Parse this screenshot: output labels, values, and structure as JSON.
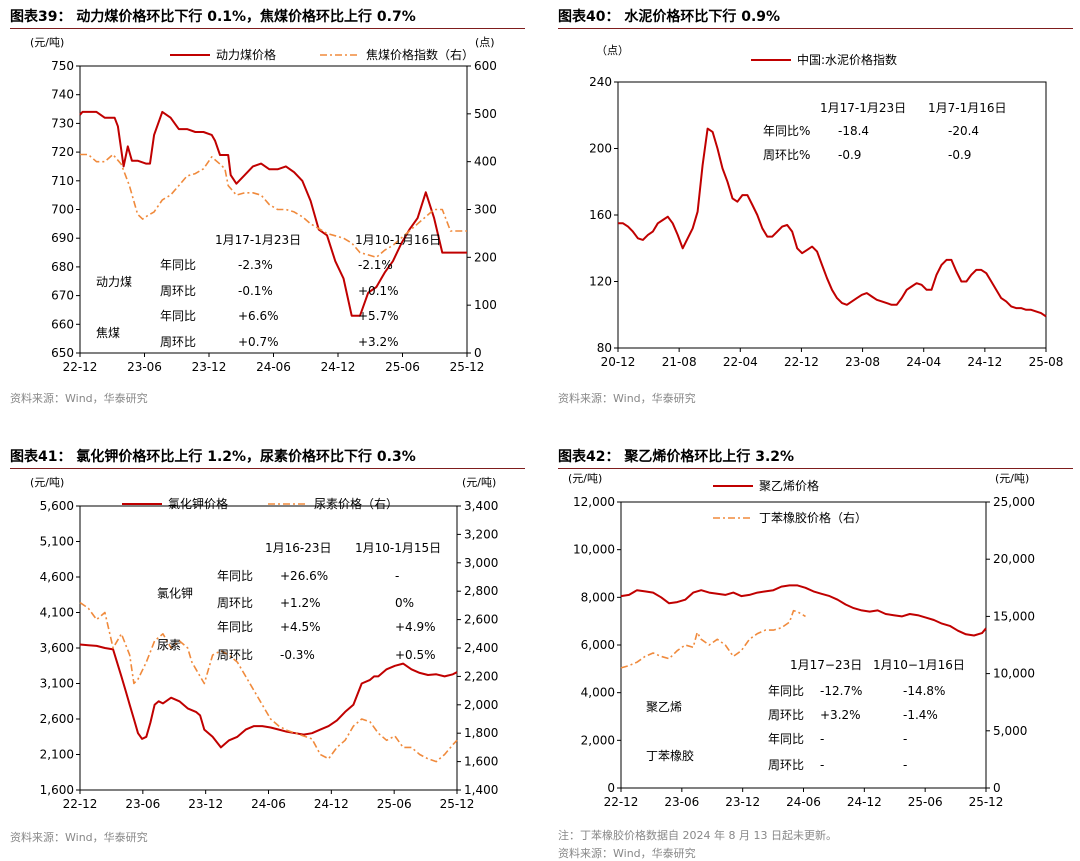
{
  "panels": [
    {
      "title": "图表39： 动力煤价格环比下行 0.1%，焦煤价格环比上行 0.7%",
      "source": "资料来源：Wind，华泰研究"
    },
    {
      "title": "图表40： 水泥价格环比下行 0.9%",
      "source": "资料来源：Wind，华泰研究"
    },
    {
      "title": "图表41： 氯化钾价格环比上行 1.2%，尿素价格环比下行 0.3%",
      "source": "资料来源：Wind，华泰研究"
    },
    {
      "title": "图表42： 聚乙烯价格环比上行 3.2%",
      "note": "注：丁苯橡胶价格数据自 2024 年 8 月 13 日起未更新。",
      "source": "资料来源：Wind，华泰研究"
    }
  ],
  "colors": {
    "primary": "#c00000",
    "secondary": "#f08a3c",
    "title_rule": "#7f1d1d"
  },
  "chart_data": [
    {
      "type": "line",
      "xticks": [
        "22-12",
        "23-06",
        "23-12",
        "24-06",
        "24-12",
        "25-06",
        "25-12"
      ],
      "y_unit_left": "(元/吨)",
      "y_unit_right": "(点)",
      "ylim_left": [
        650,
        750
      ],
      "yticks_left": [
        "650",
        "660",
        "670",
        "680",
        "690",
        "700",
        "710",
        "720",
        "730",
        "740",
        "750"
      ],
      "ylim_right": [
        0,
        600
      ],
      "yticks_right": [
        "0",
        "100",
        "200",
        "300",
        "400",
        "500",
        "600"
      ],
      "series": [
        {
          "name": "动力煤价格",
          "axis": "left",
          "style": "solid",
          "x": [
            0,
            0.3,
            1,
            2,
            3,
            3.8,
            4.2,
            4.6,
            5.3,
            5.8,
            6.3,
            7,
            8,
            8.5,
            9,
            10,
            11,
            12,
            13,
            14,
            15,
            16,
            16.4,
            17,
            18,
            18.3,
            19,
            20,
            21,
            22,
            23,
            24,
            25,
            26,
            27,
            28,
            29,
            30,
            31,
            32,
            33,
            34,
            35,
            36,
            37,
            38,
            39,
            40,
            41,
            42,
            43,
            44,
            45,
            45.8,
            46.4,
            47
          ],
          "y": [
            733,
            734,
            734,
            734,
            732,
            732,
            732,
            729,
            715,
            722,
            717,
            717,
            716,
            716,
            726,
            734,
            732,
            728,
            728,
            727,
            727,
            726,
            724,
            719,
            719,
            712,
            709,
            712,
            715,
            716,
            714,
            714,
            715,
            713,
            710,
            703,
            693,
            691,
            682,
            676,
            663,
            663,
            671,
            673,
            678,
            682,
            688,
            693,
            697,
            706,
            697,
            685,
            685,
            685,
            685,
            685
          ]
        },
        {
          "name": "焦煤价格指数（右）",
          "axis": "right",
          "style": "dashdot",
          "x": [
            0,
            1,
            2,
            3,
            4,
            5,
            6,
            7,
            7.6,
            8,
            9,
            10,
            11,
            12,
            13,
            14,
            15,
            16,
            17,
            17.6,
            18,
            19,
            20,
            21,
            22,
            23,
            24,
            25,
            26,
            27,
            28,
            29,
            30,
            31,
            32,
            33,
            34,
            35,
            36,
            37,
            38,
            39,
            40,
            41,
            42,
            43,
            44,
            45,
            46,
            47
          ],
          "y": [
            415,
            415,
            400,
            400,
            415,
            395,
            350,
            290,
            280,
            285,
            295,
            320,
            330,
            350,
            370,
            375,
            385,
            410,
            395,
            385,
            350,
            330,
            335,
            335,
            330,
            310,
            300,
            300,
            295,
            285,
            270,
            260,
            250,
            245,
            240,
            230,
            210,
            205,
            200,
            215,
            225,
            240,
            255,
            270,
            285,
            300,
            300,
            255,
            255,
            255
          ]
        }
      ],
      "annotations": {
        "periods": [
          "1月17-1月23日",
          "1月10-1月16日"
        ],
        "rows": [
          {
            "group": "动力煤",
            "metric": "年同比",
            "values": [
              "-2.3%",
              "-2.1%"
            ]
          },
          {
            "group": "",
            "metric": "周环比",
            "values": [
              "-0.1%",
              "+0.1%"
            ]
          },
          {
            "group": "焦煤",
            "metric": "年同比",
            "values": [
              "+6.6%",
              "+5.7%"
            ]
          },
          {
            "group": "",
            "metric": "周环比",
            "values": [
              "+0.7%",
              "+3.2%"
            ]
          }
        ]
      }
    },
    {
      "type": "line",
      "xticks": [
        "20-12",
        "21-08",
        "22-04",
        "22-12",
        "23-08",
        "24-04",
        "24-12",
        "25-08"
      ],
      "y_unit_left": "（点）",
      "ylim_left": [
        80,
        240
      ],
      "yticks_left": [
        "80",
        "120",
        "160",
        "200",
        "240"
      ],
      "series": [
        {
          "name": "中国:水泥价格指数",
          "axis": "left",
          "style": "solid",
          "x": [
            0,
            0.5,
            1,
            1.5,
            2,
            2.5,
            3,
            3.5,
            4,
            4.5,
            5,
            5.5,
            6,
            6.5,
            7,
            7.5,
            8,
            8.5,
            9,
            9.5,
            10,
            10.5,
            11,
            11.5,
            12,
            12.5,
            13,
            13.5,
            14,
            14.5,
            15,
            15.5,
            16,
            16.5,
            17,
            17.5,
            18,
            18.5,
            19,
            19.5,
            20,
            20.5,
            21,
            21.5,
            22,
            22.5,
            23,
            23.5,
            24,
            24.5,
            25,
            25.5,
            26,
            26.5,
            27,
            27.5,
            28,
            28.5,
            29,
            29.5,
            30,
            30.5,
            31,
            31.5,
            32,
            32.5,
            33,
            33.5,
            34,
            34.5,
            35,
            35.5,
            36,
            36.5,
            37,
            37.5,
            38,
            38.5,
            39,
            39.5,
            40,
            40.5,
            41,
            41.5,
            42,
            42.5,
            43
          ],
          "y": [
            155,
            155,
            153,
            150,
            146,
            145,
            148,
            150,
            155,
            157,
            159,
            155,
            148,
            140,
            146,
            152,
            162,
            190,
            212,
            210,
            200,
            188,
            180,
            170,
            168,
            172,
            172,
            166,
            160,
            152,
            147,
            147,
            150,
            153,
            154,
            150,
            140,
            137,
            139,
            141,
            138,
            130,
            122,
            115,
            110,
            107,
            106,
            108,
            110,
            112,
            113,
            111,
            109,
            108,
            107,
            106,
            106,
            110,
            115,
            117,
            119,
            118,
            115,
            115,
            124,
            130,
            133,
            133,
            126,
            120,
            120,
            124,
            127,
            127,
            125,
            120,
            115,
            110,
            108,
            105,
            104,
            104,
            103,
            103,
            102,
            101,
            99
          ]
        }
      ],
      "annotations": {
        "periods": [
          "1月17-1月23日",
          "1月7-1月16日"
        ],
        "rows": [
          {
            "group": "",
            "metric": "年同比%",
            "values": [
              "-18.4",
              "-20.4"
            ]
          },
          {
            "group": "",
            "metric": "周环比%",
            "values": [
              "-0.9",
              "-0.9"
            ]
          }
        ]
      }
    },
    {
      "type": "line",
      "xticks": [
        "22-12",
        "23-06",
        "23-12",
        "24-06",
        "24-12",
        "25-06",
        "25-12"
      ],
      "y_unit_left": "(元/吨)",
      "y_unit_right": "(元/吨)",
      "ylim_left": [
        1600,
        5600
      ],
      "yticks_left": [
        "1,600",
        "2,100",
        "2,600",
        "3,100",
        "3,600",
        "4,100",
        "4,600",
        "5,100",
        "5,600"
      ],
      "ylim_right": [
        1400,
        3400
      ],
      "yticks_right": [
        "1,400",
        "1,600",
        "1,800",
        "2,000",
        "2,200",
        "2,400",
        "2,600",
        "2,800",
        "3,000",
        "3,200",
        "3,400"
      ],
      "series": [
        {
          "name": "氯化钾价格",
          "axis": "left",
          "style": "solid",
          "x": [
            0,
            1,
            2,
            3,
            4,
            5,
            5.5,
            6,
            6.5,
            7,
            7.5,
            8,
            8.5,
            9,
            9.5,
            10,
            11,
            12,
            13,
            14,
            14.5,
            15,
            16,
            17,
            18,
            19,
            20,
            21,
            22,
            23,
            24,
            25,
            26,
            27,
            28,
            29,
            30,
            31,
            32,
            33,
            34,
            35,
            35.5,
            36,
            37,
            38,
            39,
            40,
            41,
            42,
            43,
            44,
            45,
            45.5
          ],
          "y": [
            3650,
            3640,
            3630,
            3600,
            3580,
            3200,
            3000,
            2800,
            2600,
            2400,
            2320,
            2350,
            2550,
            2800,
            2850,
            2820,
            2900,
            2850,
            2750,
            2700,
            2650,
            2450,
            2350,
            2200,
            2300,
            2350,
            2450,
            2500,
            2500,
            2480,
            2450,
            2420,
            2400,
            2380,
            2400,
            2450,
            2500,
            2580,
            2700,
            2800,
            3100,
            3150,
            3200,
            3200,
            3300,
            3350,
            3380,
            3300,
            3250,
            3220,
            3230,
            3200,
            3230,
            3260
          ]
        },
        {
          "name": "尿素价格（右）",
          "axis": "right",
          "style": "dashdot",
          "x": [
            0,
            1,
            2,
            3,
            4,
            5,
            6,
            6.5,
            7,
            8,
            9,
            10,
            11,
            12,
            13,
            13.5,
            14,
            14.5,
            15,
            16,
            17,
            18,
            19,
            20,
            21,
            22,
            23,
            24,
            25,
            26,
            27,
            28,
            29,
            30,
            31,
            32,
            33,
            34,
            35,
            36,
            37,
            38,
            39,
            40,
            41,
            42,
            43,
            44,
            45,
            45.5
          ],
          "y": [
            2720,
            2680,
            2600,
            2650,
            2400,
            2500,
            2350,
            2150,
            2180,
            2300,
            2450,
            2500,
            2400,
            2450,
            2400,
            2300,
            2250,
            2200,
            2150,
            2350,
            2380,
            2350,
            2300,
            2200,
            2100,
            2000,
            1900,
            1850,
            1820,
            1800,
            1780,
            1760,
            1650,
            1620,
            1700,
            1750,
            1850,
            1900,
            1880,
            1800,
            1750,
            1780,
            1700,
            1700,
            1650,
            1620,
            1600,
            1650,
            1720,
            1750
          ]
        }
      ],
      "annotations": {
        "periods": [
          "1月16-23日",
          "1月10-1月15日"
        ],
        "rows": [
          {
            "group": "氯化钾",
            "metric": "年同比",
            "values": [
              "+26.6%",
              "-"
            ]
          },
          {
            "group": "",
            "metric": "周环比",
            "values": [
              "+1.2%",
              "0%"
            ]
          },
          {
            "group": "尿素",
            "metric": "年同比",
            "values": [
              "+4.5%",
              "+4.9%"
            ]
          },
          {
            "group": "",
            "metric": "周环比",
            "values": [
              "-0.3%",
              "+0.5%"
            ]
          }
        ]
      }
    },
    {
      "type": "line",
      "xticks": [
        "22-12",
        "23-06",
        "23-12",
        "24-06",
        "24-12",
        "25-06",
        "25-12"
      ],
      "y_unit_left": "(元/吨)",
      "y_unit_right": "(元/吨)",
      "ylim_left": [
        0,
        12000
      ],
      "yticks_left": [
        "0",
        "2,000",
        "4,000",
        "6,000",
        "8,000",
        "10,000",
        "12,000"
      ],
      "ylim_right": [
        0,
        25000
      ],
      "yticks_right": [
        "0",
        "5,000",
        "10,000",
        "15,000",
        "20,000",
        "25,000"
      ],
      "series": [
        {
          "name": "聚乙烯价格",
          "axis": "left",
          "style": "solid",
          "x": [
            0,
            1,
            2,
            3,
            4,
            5,
            6,
            7,
            8,
            9,
            10,
            11,
            12,
            13,
            14,
            15,
            16,
            17,
            18,
            19,
            20,
            21,
            22,
            23,
            24,
            25,
            26,
            27,
            28,
            29,
            30,
            31,
            32,
            33,
            34,
            35,
            36,
            37,
            38,
            39,
            40,
            41,
            42,
            43,
            44,
            45,
            45.5
          ],
          "y": [
            8050,
            8100,
            8300,
            8250,
            8200,
            8000,
            7750,
            7800,
            7900,
            8200,
            8300,
            8200,
            8150,
            8100,
            8200,
            8050,
            8100,
            8200,
            8250,
            8300,
            8450,
            8500,
            8500,
            8400,
            8250,
            8150,
            8050,
            7900,
            7700,
            7550,
            7450,
            7400,
            7450,
            7300,
            7250,
            7200,
            7300,
            7250,
            7150,
            7050,
            6900,
            6800,
            6600,
            6450,
            6400,
            6500,
            6700
          ]
        },
        {
          "name": "丁苯橡胶价格（右）",
          "axis": "right",
          "style": "dashdot",
          "x": [
            0,
            1,
            2,
            3,
            4,
            5,
            6,
            7,
            8,
            9,
            9.5,
            10,
            11,
            12,
            13,
            14,
            15,
            16,
            17,
            18,
            19,
            20,
            21,
            21.5,
            22,
            23
          ],
          "y": [
            10500,
            10700,
            11000,
            11500,
            11800,
            11500,
            11300,
            12000,
            12500,
            12300,
            13600,
            13000,
            12500,
            13000,
            12500,
            11500,
            12000,
            13000,
            13500,
            13800,
            13800,
            14000,
            14500,
            15500,
            15400,
            15000
          ]
        }
      ],
      "annotations": {
        "periods": [
          "1月17−23日",
          "1月10−1月16日"
        ],
        "rows": [
          {
            "group": "聚乙烯",
            "metric": "年同比",
            "values": [
              "-12.7%",
              "-14.8%"
            ]
          },
          {
            "group": "",
            "metric": "周环比",
            "values": [
              "+3.2%",
              "-1.4%"
            ]
          },
          {
            "group": "丁苯橡胶",
            "metric": "年同比",
            "values": [
              "-",
              "-"
            ]
          },
          {
            "group": "",
            "metric": "周环比",
            "values": [
              "-",
              "-"
            ]
          }
        ]
      }
    }
  ]
}
